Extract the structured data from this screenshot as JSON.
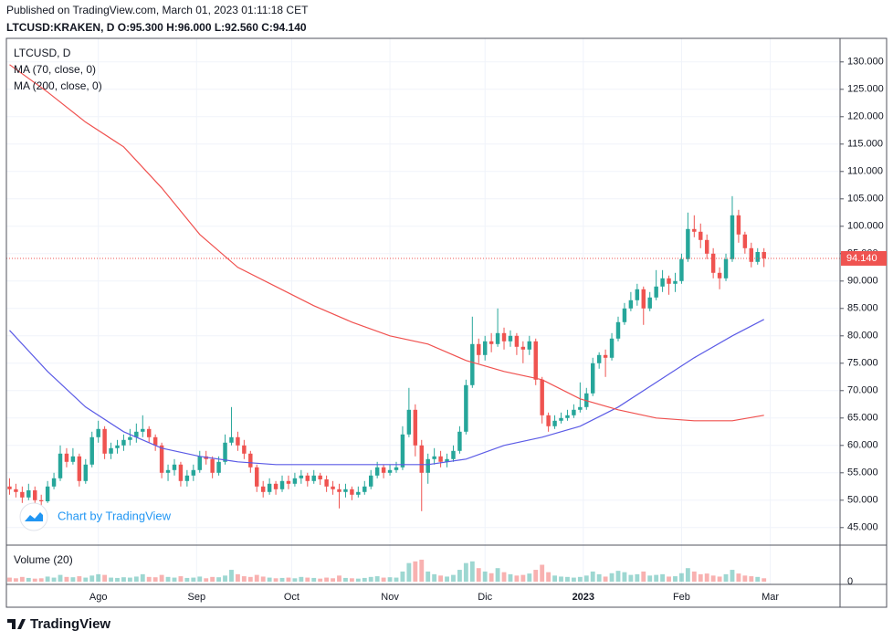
{
  "header": {
    "published": "Published on TradingView.com, March 01, 2023 01:11:18 CET",
    "symbol_line": "LTCUSD:KRAKEN, D O:95.300 H:96.000 L:92.560 C:94.140"
  },
  "chart_data": {
    "type": "candlestick",
    "title": "LTCUSD, D",
    "up_color": "#26a69a",
    "down_color": "#ef5350",
    "grid": true,
    "candles": [
      [
        52.5,
        54,
        51,
        52
      ],
      [
        52,
        53,
        50.5,
        51.5
      ],
      [
        51.5,
        52.5,
        49.5,
        50.5
      ],
      [
        50.5,
        53,
        50,
        51.8
      ],
      [
        51.8,
        52.5,
        49,
        50
      ],
      [
        50,
        51,
        48.5,
        49.8
      ],
      [
        49.8,
        53.5,
        49.5,
        52.5
      ],
      [
        52.5,
        55,
        52,
        54
      ],
      [
        54,
        60,
        53.5,
        58.5
      ],
      [
        58.5,
        59.5,
        56,
        57
      ],
      [
        57,
        59.5,
        56.5,
        58
      ],
      [
        58,
        58.5,
        52.5,
        53.5
      ],
      [
        53.5,
        57.5,
        53,
        56.5
      ],
      [
        56.5,
        62.5,
        56,
        61.5
      ],
      [
        61.5,
        64.5,
        60.5,
        63
      ],
      [
        63,
        63.5,
        57.5,
        58.5
      ],
      [
        58.5,
        60.5,
        57.5,
        59.5
      ],
      [
        59.5,
        61,
        58.5,
        60
      ],
      [
        60,
        62,
        59,
        61
      ],
      [
        61,
        63,
        60,
        61.5
      ],
      [
        61.5,
        64,
        60.5,
        62.5
      ],
      [
        62.5,
        65.5,
        61.5,
        63
      ],
      [
        63,
        63.5,
        60.5,
        61.5
      ],
      [
        61.5,
        62,
        59,
        60
      ],
      [
        60,
        60.5,
        54,
        55
      ],
      [
        55,
        56.5,
        53.5,
        55.5
      ],
      [
        55.5,
        57.5,
        54.5,
        56.5
      ],
      [
        56.5,
        57,
        52.5,
        53.5
      ],
      [
        53.5,
        55.5,
        52.5,
        54.5
      ],
      [
        54.5,
        56.5,
        53.5,
        55.5
      ],
      [
        55.5,
        59,
        55,
        58
      ],
      [
        58,
        59,
        56.5,
        57.5
      ],
      [
        57.5,
        58,
        54,
        55
      ],
      [
        55,
        58,
        54.5,
        57
      ],
      [
        57,
        62,
        56.5,
        60.5
      ],
      [
        60.5,
        67,
        60,
        61.5
      ],
      [
        61.5,
        62.5,
        59,
        60
      ],
      [
        60,
        61,
        57.5,
        58.5
      ],
      [
        58.5,
        59,
        55,
        56
      ],
      [
        56,
        56.5,
        51.5,
        52.5
      ],
      [
        52.5,
        53.5,
        50.5,
        51.5
      ],
      [
        51.5,
        54,
        51,
        53
      ],
      [
        53,
        53.5,
        51,
        52
      ],
      [
        52,
        54.5,
        51.5,
        53.5
      ],
      [
        53.5,
        54.5,
        52,
        53
      ],
      [
        53,
        55,
        52.5,
        54
      ],
      [
        54,
        55.5,
        53,
        54.5
      ],
      [
        54.5,
        55,
        52.5,
        53.5
      ],
      [
        53.5,
        55.5,
        53,
        54.5
      ],
      [
        54.5,
        55,
        52.8,
        53.8
      ],
      [
        53.8,
        54.5,
        51.5,
        52.5
      ],
      [
        52.5,
        53.5,
        51,
        52
      ],
      [
        52,
        53,
        48.5,
        51.5
      ],
      [
        51.5,
        53,
        50.5,
        52
      ],
      [
        52,
        52.5,
        50,
        51
      ],
      [
        51,
        52.5,
        50.5,
        51.5
      ],
      [
        51.5,
        53.5,
        51,
        52.5
      ],
      [
        52.5,
        55.5,
        52,
        54.5
      ],
      [
        54.5,
        57,
        54,
        56
      ],
      [
        56,
        56.5,
        54,
        55
      ],
      [
        55,
        56.5,
        54.5,
        55.5
      ],
      [
        55.5,
        57,
        55,
        56
      ],
      [
        56,
        63.5,
        55.5,
        62
      ],
      [
        62,
        70.5,
        61.5,
        66.5
      ],
      [
        66.5,
        67.5,
        58,
        60
      ],
      [
        60,
        61,
        48,
        55
      ],
      [
        55,
        58.5,
        53,
        57.5
      ],
      [
        57.5,
        59.5,
        56.5,
        58
      ],
      [
        58,
        59,
        56,
        57
      ],
      [
        57,
        58.5,
        56,
        57.5
      ],
      [
        57.5,
        60,
        57,
        59
      ],
      [
        59,
        63.5,
        58.5,
        62.5
      ],
      [
        62.5,
        72,
        62,
        71
      ],
      [
        71,
        83.5,
        70.5,
        78.5
      ],
      [
        78.5,
        79.5,
        75,
        76.5
      ],
      [
        76.5,
        80,
        75.5,
        79
      ],
      [
        79,
        80.5,
        77,
        78.5
      ],
      [
        78.5,
        85,
        78,
        80.5
      ],
      [
        80.5,
        81.5,
        77.5,
        79
      ],
      [
        79,
        81,
        78,
        80
      ],
      [
        80,
        80.5,
        76.5,
        78
      ],
      [
        78,
        79,
        75,
        77.5
      ],
      [
        77.5,
        80,
        76.5,
        79
      ],
      [
        79,
        79.5,
        71,
        72
      ],
      [
        72,
        72.5,
        64,
        65.5
      ],
      [
        65.5,
        66,
        62.5,
        63.5
      ],
      [
        63.5,
        65.5,
        63,
        64.5
      ],
      [
        64.5,
        66,
        64,
        65
      ],
      [
        65,
        66.5,
        64.5,
        65.5
      ],
      [
        65.5,
        67.5,
        65,
        66.5
      ],
      [
        66.5,
        71.5,
        66,
        67
      ],
      [
        67,
        70.5,
        66.5,
        69.5
      ],
      [
        69.5,
        76,
        69,
        75
      ],
      [
        75,
        77,
        74,
        76.5
      ],
      [
        76.5,
        77.5,
        72.5,
        76
      ],
      [
        76,
        80.5,
        75.5,
        79.5
      ],
      [
        79.5,
        83.5,
        79,
        82.5
      ],
      [
        82.5,
        86,
        82,
        85
      ],
      [
        85,
        88,
        84.5,
        86.5
      ],
      [
        86.5,
        89.5,
        85.5,
        88.5
      ],
      [
        88.5,
        89,
        82,
        85
      ],
      [
        85,
        88,
        84.5,
        87
      ],
      [
        87,
        92,
        86.5,
        89
      ],
      [
        89,
        92,
        88,
        90.5
      ],
      [
        90.5,
        91,
        87.5,
        89.5
      ],
      [
        89.5,
        91.5,
        88,
        90
      ],
      [
        90,
        95,
        89.5,
        94
      ],
      [
        94,
        102.5,
        93.5,
        99.5
      ],
      [
        99.5,
        102,
        98,
        99
      ],
      [
        99,
        100.5,
        96,
        97.5
      ],
      [
        97.5,
        98.5,
        94,
        95
      ],
      [
        95,
        96,
        90.5,
        91.5
      ],
      [
        91.5,
        92.5,
        88.5,
        90.5
      ],
      [
        90.5,
        95,
        90,
        94
      ],
      [
        94,
        105.5,
        93.5,
        102
      ],
      [
        102,
        103,
        97,
        98.5
      ],
      [
        98.5,
        99,
        95,
        96
      ],
      [
        96,
        97,
        92.5,
        93.5
      ],
      [
        93.5,
        96,
        93,
        95.3
      ],
      [
        95.3,
        96,
        92.56,
        94.14
      ]
    ],
    "volume": {
      "name": "Volume (20)",
      "ylim": [
        0,
        100
      ],
      "yticks": [
        0
      ],
      "values": [
        12,
        10,
        14,
        11,
        9,
        10,
        15,
        12,
        20,
        14,
        13,
        16,
        12,
        18,
        22,
        20,
        12,
        11,
        13,
        12,
        15,
        22,
        14,
        13,
        20,
        14,
        12,
        16,
        11,
        12,
        15,
        10,
        14,
        13,
        18,
        35,
        22,
        16,
        14,
        20,
        15,
        12,
        10,
        11,
        12,
        10,
        14,
        12,
        11,
        9,
        12,
        10,
        18,
        11,
        10,
        9,
        11,
        14,
        16,
        12,
        13,
        12,
        30,
        55,
        60,
        65,
        30,
        22,
        18,
        15,
        20,
        35,
        55,
        60,
        40,
        30,
        25,
        40,
        28,
        22,
        18,
        20,
        24,
        35,
        50,
        28,
        18,
        15,
        14,
        12,
        14,
        18,
        30,
        22,
        15,
        25,
        32,
        28,
        20,
        22,
        30,
        18,
        20,
        22,
        15,
        16,
        25,
        40,
        30,
        22,
        24,
        18,
        15,
        22,
        35,
        24,
        18,
        16,
        14,
        10
      ]
    },
    "series": [
      {
        "name": "MA (70, close, 0)",
        "color": "#5b5be6",
        "x": [
          0,
          6,
          12,
          18,
          24,
          30,
          36,
          42,
          48,
          54,
          60,
          66,
          72,
          78,
          84,
          90,
          96,
          102,
          108,
          114,
          119
        ],
        "values": [
          81,
          73.5,
          67,
          62.5,
          59.5,
          58,
          57,
          56.5,
          56.5,
          56.5,
          56.5,
          56.5,
          57.5,
          60,
          61.5,
          63.5,
          67,
          71.5,
          76,
          80,
          83
        ]
      },
      {
        "name": "MA (200, close, 0)",
        "color": "#f0514f",
        "x": [
          0,
          6,
          12,
          18,
          24,
          30,
          36,
          42,
          48,
          54,
          60,
          66,
          72,
          78,
          84,
          90,
          96,
          102,
          108,
          114,
          119
        ],
        "values": [
          129.5,
          124.5,
          119,
          114.5,
          107,
          98.5,
          92.5,
          89,
          85.5,
          82.5,
          80,
          78.5,
          75.5,
          73.5,
          72,
          68.5,
          66.5,
          65,
          64.5,
          64.5,
          65.5
        ]
      }
    ],
    "last_price": {
      "value": 94.14,
      "label": "94.140"
    },
    "xlim": [
      -0.5,
      131
    ],
    "xticks": [
      {
        "value": 14,
        "label": "Ago"
      },
      {
        "value": 29.5,
        "label": "Sep"
      },
      {
        "value": 44.5,
        "label": "Oct"
      },
      {
        "value": 60,
        "label": "Nov"
      },
      {
        "value": 75,
        "label": "Dic"
      },
      {
        "value": 90.5,
        "label": "2023"
      },
      {
        "value": 106,
        "label": "Feb"
      },
      {
        "value": 120,
        "label": "Mar"
      }
    ],
    "ylim": [
      41.8,
      134.3
    ],
    "yticks": [
      {
        "value": 45,
        "label": "45.000"
      },
      {
        "value": 50,
        "label": "50.000"
      },
      {
        "value": 55,
        "label": "55.000"
      },
      {
        "value": 60,
        "label": "60.000"
      },
      {
        "value": 65,
        "label": "65.000"
      },
      {
        "value": 70,
        "label": "70.000"
      },
      {
        "value": 75,
        "label": "75.000"
      },
      {
        "value": 80,
        "label": "80.000"
      },
      {
        "value": 85,
        "label": "85.000"
      },
      {
        "value": 90,
        "label": "90.000"
      },
      {
        "value": 95,
        "label": "95.000"
      },
      {
        "value": 100,
        "label": "100.000"
      },
      {
        "value": 105,
        "label": "105.000"
      },
      {
        "value": 110,
        "label": "110.000"
      },
      {
        "value": 115,
        "label": "115.000"
      },
      {
        "value": 120,
        "label": "120.000"
      },
      {
        "value": 125,
        "label": "125.000"
      },
      {
        "value": 130,
        "label": "130.000"
      }
    ]
  },
  "watermark": "Chart by TradingView",
  "footer": "TradingView"
}
